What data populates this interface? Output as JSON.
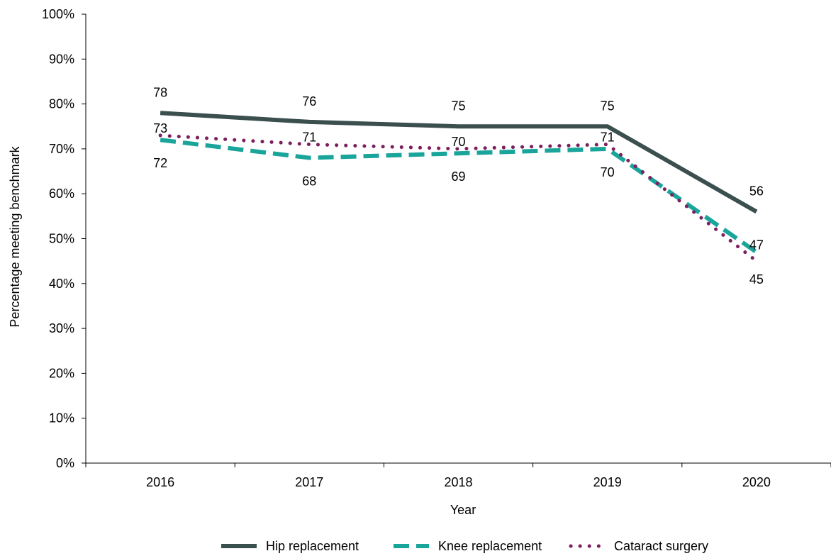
{
  "chart_data": {
    "type": "line",
    "title": "",
    "xlabel": "Year",
    "ylabel": "Percentage meeting benchmark",
    "categories": [
      "2016",
      "2017",
      "2018",
      "2019",
      "2020"
    ],
    "ylim": [
      0,
      100
    ],
    "yticks": [
      0,
      10,
      20,
      30,
      40,
      50,
      60,
      70,
      80,
      90,
      100
    ],
    "ytick_labels": [
      "0%",
      "10%",
      "20%",
      "30%",
      "40%",
      "50%",
      "60%",
      "70%",
      "80%",
      "90%",
      "100%"
    ],
    "grid": false,
    "legend_position": "bottom",
    "series": [
      {
        "name": "Hip replacement",
        "values": [
          78,
          76,
          75,
          75,
          56
        ],
        "color": "#3b4f4f",
        "style": "solid",
        "labels": [
          "78",
          "76",
          "75",
          "75",
          "56"
        ],
        "label_side": "above"
      },
      {
        "name": "Knee replacement",
        "values": [
          72,
          68,
          69,
          70,
          47
        ],
        "color": "#1aa59b",
        "style": "dashed",
        "labels": [
          "72",
          "68",
          "69",
          "70",
          "47"
        ],
        "label_side": "below"
      },
      {
        "name": "Cataract surgery",
        "values": [
          73,
          71,
          70,
          71,
          45
        ],
        "color": "#7b1f5e",
        "style": "dotted",
        "labels": [
          "73",
          "71",
          "70",
          "71",
          "45"
        ],
        "label_side": "above"
      }
    ]
  }
}
